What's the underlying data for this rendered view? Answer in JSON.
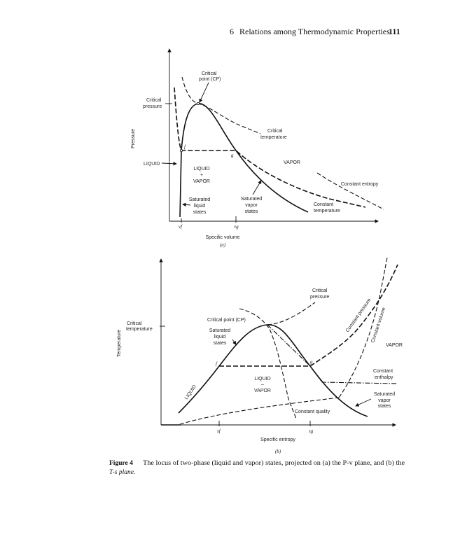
{
  "header": {
    "chapter": "6",
    "title": "Relations among Thermodynamic Properties",
    "page_number": "111"
  },
  "figure_a": {
    "y_axis": "Pressure",
    "x_axis": "Specific volume",
    "panel": "(a)",
    "critical_point": [
      "Critical",
      "point (CP)"
    ],
    "critical_pressure": [
      "Critical",
      "pressure"
    ],
    "critical_temperature": [
      "Critical",
      "temperature"
    ],
    "point_f": "f",
    "point_g": "g",
    "liquid": "LIQUID",
    "vapor": "VAPOR",
    "liquid_vapor": [
      "LIQUID",
      "+",
      "VAPOR"
    ],
    "saturated_liquid": [
      "Saturated",
      "liquid",
      "states"
    ],
    "saturated_vapor": [
      "Saturated",
      "vapor",
      "states"
    ],
    "constant_temperature": [
      "Constant",
      "temperature"
    ],
    "constant_entropy": "Constant entropy",
    "tick_vf": "vf",
    "tick_vg": "vg"
  },
  "figure_b": {
    "y_axis": "Temperature",
    "x_axis": "Specific entropy",
    "panel": "(b)",
    "critical_pressure": [
      "Critical",
      "pressure"
    ],
    "critical_point": "Critical point (CP)",
    "critical_temperature": [
      "Critical",
      "temperature"
    ],
    "saturated_liquid": [
      "Saturated",
      "liquid",
      "states"
    ],
    "constant_pressure": "Constant pressure",
    "constant_volume": "Constant volume",
    "vapor": "VAPOR",
    "point_f": "f",
    "point_g": "g",
    "constant_enthalpy": [
      "Constant",
      "enthalpy"
    ],
    "liquid_vapor": [
      "LIQUID",
      "–",
      "VAPOR"
    ],
    "liquid": "LIQUID",
    "saturated_vapor": [
      "Saturated",
      "vapor",
      "states"
    ],
    "constant_quality": "Constant quality",
    "tick_sf": "sf",
    "tick_sg": "sg"
  },
  "caption": {
    "label": "Figure 4",
    "line1": "The locus of two-phase (liquid and vapor) states, projected on (a) the P-v plane, and (b) the",
    "line2": "T-s plane."
  }
}
